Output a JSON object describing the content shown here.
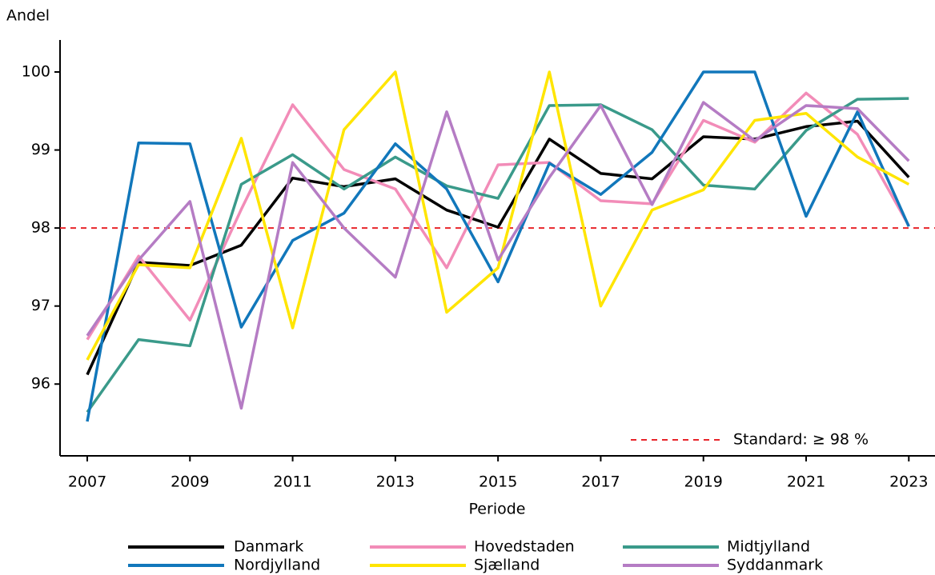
{
  "chart_data": {
    "type": "line",
    "y_label": "Andel",
    "x_label": "Periode",
    "x": [
      2007,
      2008,
      2009,
      2010,
      2011,
      2012,
      2013,
      2014,
      2015,
      2016,
      2017,
      2018,
      2019,
      2020,
      2021,
      2022,
      2023
    ],
    "xlim": [
      2006.47,
      2023.51
    ],
    "xticks": [
      2007,
      2009,
      2011,
      2013,
      2015,
      2017,
      2019,
      2021,
      2023
    ],
    "ylim": [
      95.08,
      100.41
    ],
    "yticks": [
      96,
      97,
      98,
      99,
      100
    ],
    "reference": {
      "value": 98,
      "label": "Standard: ≥ 98 %",
      "color": "#e8242a"
    },
    "series": [
      {
        "name": "Danmark",
        "color": "#000000",
        "values": [
          96.12,
          97.56,
          97.52,
          97.78,
          98.64,
          98.53,
          98.63,
          98.23,
          98.01,
          99.14,
          98.7,
          98.63,
          99.17,
          99.14,
          99.3,
          99.37,
          98.65
        ]
      },
      {
        "name": "Hovedstaden",
        "color": "#f28cb8",
        "values": [
          96.57,
          97.64,
          96.82,
          98.24,
          99.58,
          98.75,
          98.5,
          97.49,
          98.81,
          98.84,
          98.35,
          98.31,
          99.38,
          99.1,
          99.73,
          99.2,
          98.03
        ]
      },
      {
        "name": "Midtjylland",
        "color": "#3a9a8a",
        "values": [
          95.64,
          96.57,
          96.49,
          98.56,
          98.94,
          98.5,
          98.91,
          98.54,
          98.38,
          99.57,
          99.58,
          99.26,
          98.55,
          98.5,
          99.25,
          99.65,
          99.66
        ]
      },
      {
        "name": "Nordjylland",
        "color": "#1177bb",
        "values": [
          95.52,
          99.09,
          99.08,
          96.73,
          97.84,
          98.19,
          99.08,
          98.5,
          97.31,
          98.83,
          98.43,
          98.97,
          100,
          100,
          98.15,
          99.49,
          98.02
        ]
      },
      {
        "name": "Sjælland",
        "color": "#ffe500",
        "values": [
          96.31,
          97.53,
          97.49,
          99.15,
          96.72,
          99.26,
          100,
          96.92,
          97.49,
          100,
          97.0,
          98.23,
          98.49,
          99.38,
          99.47,
          98.91,
          98.56
        ]
      },
      {
        "name": "Syddanmark",
        "color": "#b57cc4",
        "values": [
          96.62,
          97.59,
          98.34,
          95.69,
          98.84,
          98.0,
          97.37,
          99.49,
          97.59,
          98.65,
          99.57,
          98.3,
          99.61,
          99.12,
          99.57,
          99.53,
          98.86
        ]
      }
    ]
  }
}
